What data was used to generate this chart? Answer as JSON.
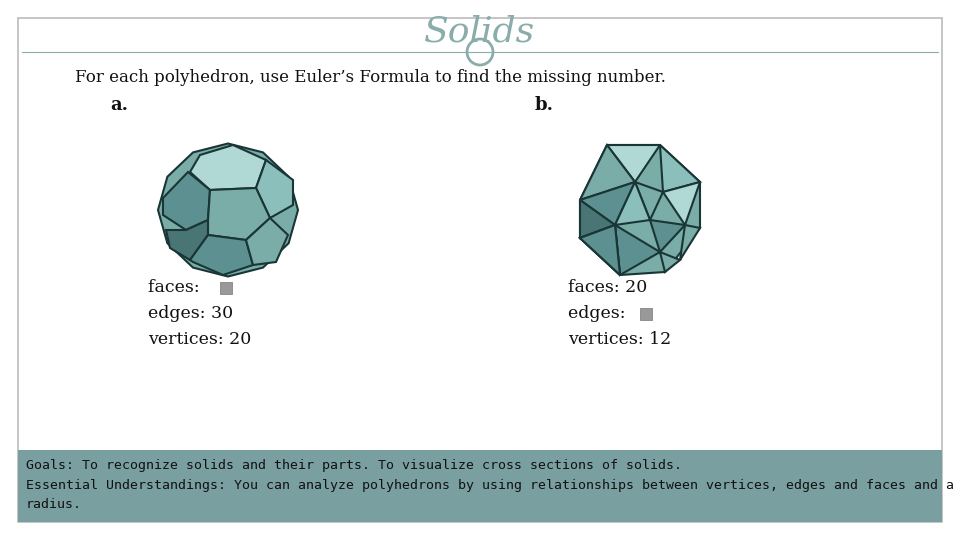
{
  "title": "Solids",
  "title_color": "#8aacaa",
  "title_fontsize": 26,
  "bg_color": "#ffffff",
  "border_color": "#bbbbbb",
  "header_line_color": "#8aacaa",
  "circle_color": "#8aacaa",
  "main_text": "For each polyhedron, use Euler’s Formula to find the missing number.",
  "label_a": "a.",
  "label_b": "b.",
  "text_a_lines": [
    "faces: ",
    "edges: 30",
    "vertices: 20"
  ],
  "text_b_lines": [
    "faces: 20",
    "edges: ",
    "vertices: 12"
  ],
  "footer_bg": "#7a9fa0",
  "footer_text_line1": "Goals: To recognize solids and their parts. To visualize cross sections of solids.",
  "footer_text_line2": "Essential Understandings: You can analyze polyhedrons by using relationships between vertices, edges and faces and a sphere by its",
  "footer_text_line3": "radius.",
  "footer_text_color": "#111111",
  "footer_fontsize": 9.5,
  "square_color": "#999999",
  "poly_fill": "#8bbfbb",
  "poly_fill_light": "#b0d8d4",
  "poly_fill_mid": "#7aada8",
  "poly_fill_dark": "#5d9090",
  "poly_fill_darker": "#4a7575",
  "poly_edge": "#1a3535"
}
